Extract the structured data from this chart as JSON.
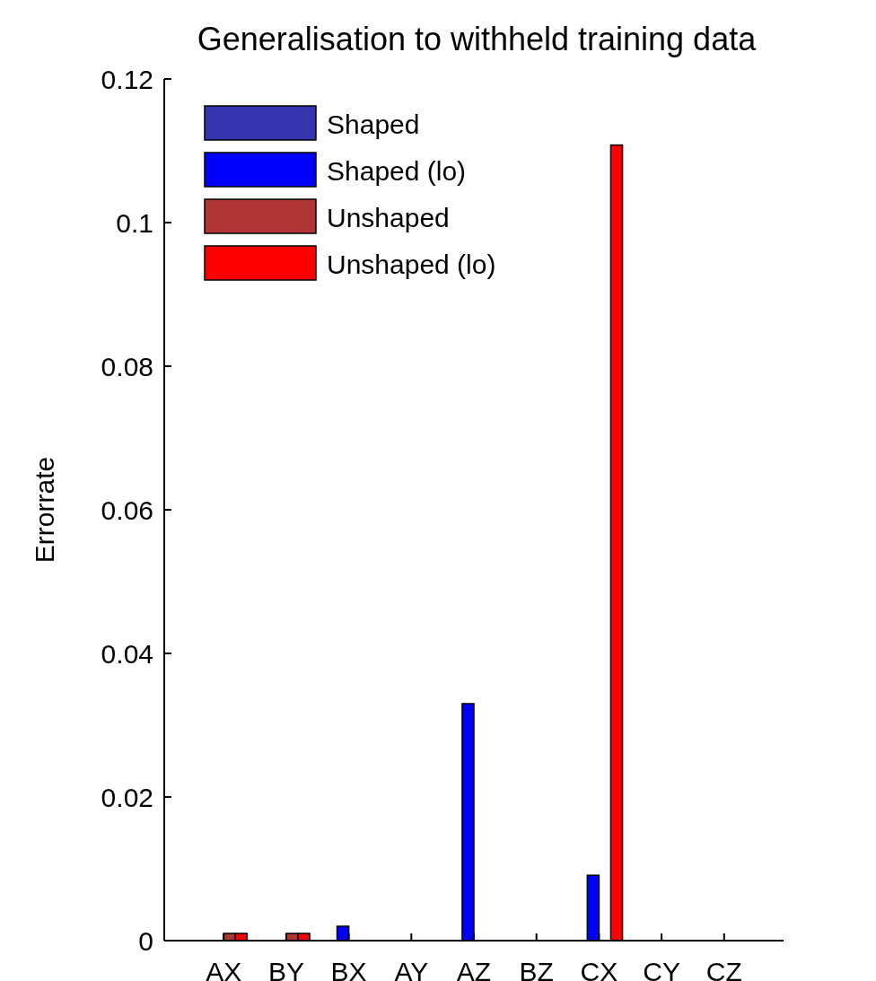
{
  "chart_data": {
    "type": "bar",
    "title": "Generalisation to withheld training data",
    "ylabel": "Errorrate",
    "categories": [
      "AX",
      "BY",
      "BX",
      "AY",
      "AZ",
      "BZ",
      "CX",
      "CY",
      "CZ"
    ],
    "series": [
      {
        "name": "Shaped",
        "color": "#3535b0",
        "values": [
          0,
          0,
          0,
          0,
          0,
          0,
          0,
          0,
          0
        ]
      },
      {
        "name": "Shaped (lo)",
        "color": "#0000ff",
        "values": [
          0,
          0,
          0.002,
          0,
          0.033,
          0,
          0.0091,
          0,
          0
        ]
      },
      {
        "name": "Unshaped",
        "color": "#b03535",
        "values": [
          0.001,
          0.001,
          0,
          0,
          0,
          0,
          0,
          0,
          0
        ]
      },
      {
        "name": "Unshaped (lo)",
        "color": "#ff0000",
        "values": [
          0.001,
          0.001,
          0,
          0,
          0,
          0,
          0.1108,
          0,
          0
        ]
      }
    ],
    "ylim": [
      0,
      0.12
    ],
    "yticks": [
      0,
      0.02,
      0.04,
      0.06,
      0.08,
      0.1,
      0.12
    ],
    "grid": false,
    "legend": "top left"
  }
}
